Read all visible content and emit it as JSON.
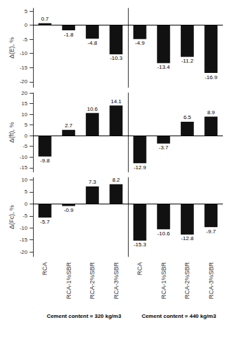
{
  "chart_data": [
    {
      "type": "bar",
      "categories": [
        "RCA",
        "RCA-1%SBR",
        "RCA-2%SBR",
        "RCA-3%SBR"
      ],
      "values": [
        0.7,
        -1.8,
        -4.8,
        -10.3
      ],
      "color": "#111111",
      "ylabel": "Δ(E), %",
      "ylim": [
        -22,
        6
      ],
      "yticks": [
        -20,
        -15,
        -10,
        -5,
        0,
        5
      ],
      "grid": false,
      "data_labels": true,
      "tick_labels": "y"
    },
    {
      "type": "bar",
      "categories": [
        "RCA",
        "RCA-1%SBR",
        "RCA-2%SBR",
        "RCA-3%SBR"
      ],
      "values": [
        -4.9,
        -13.4,
        -11.2,
        -16.9
      ],
      "color": "#111111",
      "ylim": [
        -22,
        6
      ],
      "yticks": [
        -20,
        -15,
        -10,
        -5,
        0,
        5
      ],
      "grid": false,
      "data_labels": true,
      "tick_labels": false
    },
    {
      "type": "bar",
      "categories": [
        "RCA",
        "RCA-1%SBR",
        "RCA-2%SBR",
        "RCA-3%SBR"
      ],
      "values": [
        -9.8,
        2.7,
        10.6,
        14.1
      ],
      "color": "#111111",
      "ylabel": "Δ(ft), %",
      "ylim": [
        -17,
        20
      ],
      "yticks": [
        -15,
        -10,
        -5,
        0,
        5,
        10,
        15,
        20
      ],
      "grid": false,
      "data_labels": true,
      "tick_labels": "y"
    },
    {
      "type": "bar",
      "categories": [
        "RCA",
        "RCA-1%SBR",
        "RCA-2%SBR",
        "RCA-3%SBR"
      ],
      "values": [
        -12.9,
        -3.7,
        6.5,
        8.9
      ],
      "color": "#111111",
      "ylim": [
        -17,
        20
      ],
      "yticks": [
        -15,
        -10,
        -5,
        0,
        5,
        10,
        15,
        20
      ],
      "grid": false,
      "data_labels": true,
      "tick_labels": false
    },
    {
      "type": "bar",
      "title": "Cement content = 320 kg/m3",
      "categories": [
        "RCA",
        "RCA-1%SBR",
        "RCA-2%SBR",
        "RCA-3%SBR"
      ],
      "values": [
        -5.7,
        -0.9,
        7.3,
        8.2
      ],
      "color": "#111111",
      "ylabel": "Δ(Fc), %",
      "ylim": [
        -22,
        11
      ],
      "yticks": [
        -20,
        -15,
        -10,
        -5,
        0,
        5,
        10
      ],
      "grid": false,
      "data_labels": true
    },
    {
      "type": "bar",
      "title": "Cement content = 440 kg/m3",
      "categories": [
        "RCA",
        "RCA-1%SBR",
        "RCA-2%SBR",
        "RCA-3%SBR"
      ],
      "values": [
        -15.3,
        -10.6,
        -12.8,
        -9.7
      ],
      "color": "#111111",
      "ylim": [
        -22,
        11
      ],
      "yticks": [
        -20,
        -15,
        -10,
        -5,
        0,
        5,
        10
      ],
      "grid": false,
      "data_labels": true,
      "tick_labels": "x"
    }
  ]
}
